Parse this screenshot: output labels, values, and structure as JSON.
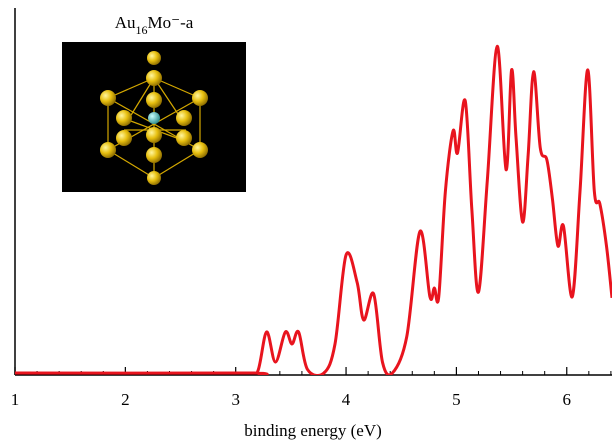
{
  "chart_data": {
    "type": "line",
    "xlabel": "binding energy (eV)",
    "inset_label": {
      "base": "Au",
      "subscript": "16",
      "rest": "Mo⁻-a"
    },
    "xlim": [
      1,
      6.41
    ],
    "ylim": [
      0,
      100
    ],
    "xticks": [
      1,
      2,
      3,
      4,
      5,
      6
    ],
    "xminorticks": [
      1.2,
      1.4,
      1.6,
      1.8,
      2.2,
      2.4,
      2.6,
      2.8,
      3.2,
      3.4,
      3.6,
      3.8,
      4.2,
      4.4,
      4.6,
      4.8,
      5.2,
      5.4,
      5.6,
      5.8,
      6.2,
      6.4
    ],
    "series": [
      {
        "color": "#e8141e",
        "x": [
          1.0,
          3.1,
          3.2,
          3.28,
          3.36,
          3.45,
          3.51,
          3.57,
          3.65,
          3.8,
          3.9,
          4.0,
          4.1,
          4.16,
          4.25,
          4.33,
          4.42,
          4.55,
          4.67,
          4.76,
          4.8,
          4.84,
          4.9,
          4.97,
          5.01,
          5.08,
          5.14,
          5.2,
          5.28,
          5.37,
          5.45,
          5.5,
          5.54,
          5.6,
          5.65,
          5.7,
          5.76,
          5.82,
          5.87,
          5.92,
          5.97,
          6.05,
          6.12,
          6.19,
          6.25,
          6.3,
          6.36,
          6.41
        ],
        "values": [
          0,
          0,
          0.5,
          11.3,
          3,
          11.3,
          8,
          11.3,
          1,
          0,
          8,
          32.5,
          25,
          14.6,
          21.8,
          3,
          0,
          10,
          39,
          21,
          23.4,
          21,
          50,
          66.7,
          60.6,
          75,
          45,
          22.3,
          53,
          90,
          56,
          83.5,
          65,
          41.6,
          60,
          83,
          62,
          58.7,
          48,
          35,
          40.5,
          21,
          50,
          83.5,
          50,
          46.6,
          35,
          20.7
        ]
      }
    ]
  }
}
